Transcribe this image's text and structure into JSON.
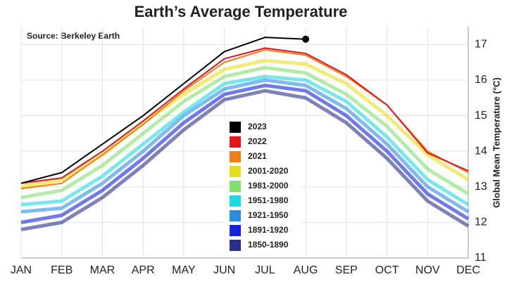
{
  "chart_data": {
    "type": "line",
    "title": "Earth’s Average Temperature",
    "source": "Source: Berkeley Earth",
    "y_label": "Global Mean Temperature (°C)",
    "categories": [
      "JAN",
      "FEB",
      "MAR",
      "APR",
      "MAY",
      "JUN",
      "JUL",
      "AUG",
      "SEP",
      "OCT",
      "NOV",
      "DEC"
    ],
    "ylim": [
      11,
      17.5
    ],
    "yticks": [
      11,
      12,
      13,
      14,
      15,
      16,
      17
    ],
    "grid": true,
    "series": [
      {
        "name": "2023",
        "color": "#000000",
        "end_marker": true,
        "values": [
          13.1,
          13.4,
          14.2,
          15.0,
          15.9,
          16.8,
          17.2,
          17.15,
          null,
          null,
          null,
          null
        ]
      },
      {
        "name": "2022",
        "color": "#e8141c",
        "values": [
          13.1,
          13.25,
          14.0,
          14.85,
          15.75,
          16.6,
          16.9,
          16.75,
          16.15,
          15.3,
          13.95,
          13.45
        ]
      },
      {
        "name": "2021",
        "color": "#f07f1a",
        "values": [
          12.95,
          13.1,
          13.9,
          14.75,
          15.7,
          16.5,
          16.85,
          16.7,
          16.1,
          15.3,
          14.0,
          13.4
        ]
      },
      {
        "name": "2001-2020",
        "color": "#e6df1c",
        "values": [
          13.0,
          13.2,
          13.9,
          14.8,
          15.6,
          16.3,
          16.55,
          16.45,
          15.9,
          15.0,
          13.9,
          13.2
        ]
      },
      {
        "name": "1981-2000",
        "color": "#7fe06a",
        "values": [
          12.7,
          12.9,
          13.6,
          14.5,
          15.4,
          16.1,
          16.35,
          16.2,
          15.6,
          14.7,
          13.5,
          12.8
        ]
      },
      {
        "name": "1951-1980",
        "color": "#1ed9e0",
        "values": [
          12.5,
          12.6,
          13.3,
          14.2,
          15.1,
          15.9,
          16.1,
          16.0,
          15.4,
          14.4,
          13.2,
          12.5
        ]
      },
      {
        "name": "1921-1950",
        "color": "#2a8de0",
        "values": [
          12.3,
          12.4,
          13.1,
          14.0,
          15.0,
          15.75,
          16.0,
          15.85,
          15.2,
          14.2,
          13.0,
          12.3
        ]
      },
      {
        "name": "1891-1920",
        "color": "#1322e0",
        "values": [
          12.0,
          12.2,
          12.9,
          13.8,
          14.8,
          15.6,
          15.85,
          15.7,
          15.0,
          14.0,
          12.8,
          12.1
        ]
      },
      {
        "name": "1850-1890",
        "color": "#2a2f8a",
        "values": [
          11.8,
          12.0,
          12.7,
          13.6,
          14.6,
          15.45,
          15.7,
          15.5,
          14.8,
          13.8,
          12.6,
          11.9
        ]
      }
    ]
  }
}
